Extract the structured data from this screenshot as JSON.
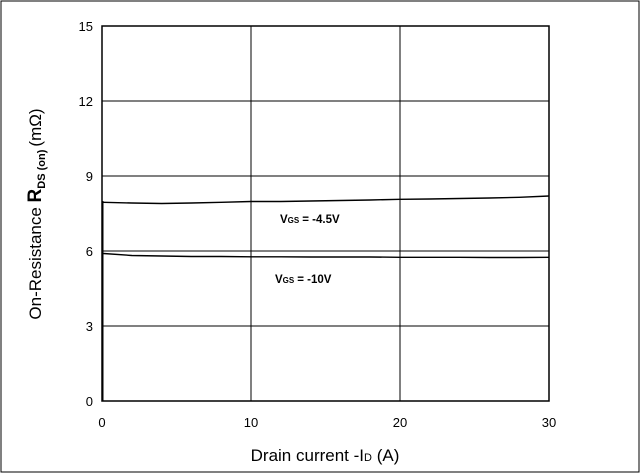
{
  "chart_data": {
    "type": "line",
    "xlabel_prefix": "Drain current -I",
    "xlabel_sub": "D",
    "xlabel_suffix": " (A)",
    "ylabel_prefix": "On-Resistance ",
    "ylabel_bold": "R",
    "ylabel_sub": "DS (on)",
    "ylabel_suffix": "(mΩ)",
    "xlim": [
      0,
      30
    ],
    "ylim": [
      0,
      15
    ],
    "xticks": [
      "0",
      "10",
      "20",
      "30"
    ],
    "yticks": [
      "0",
      "3",
      "6",
      "9",
      "12",
      "15"
    ],
    "grid": true,
    "series": [
      {
        "name": "VGS = -4.5V",
        "label_main": "V",
        "label_sub": "GS",
        "label_rest": "= -4.5V",
        "x": [
          0.1,
          2,
          4,
          6,
          8,
          10,
          12,
          14,
          16,
          18,
          20,
          22,
          24,
          26,
          28,
          30
        ],
        "y": [
          7.95,
          7.92,
          7.9,
          7.92,
          7.95,
          7.98,
          7.98,
          8.0,
          8.02,
          8.04,
          8.07,
          8.08,
          8.1,
          8.12,
          8.15,
          8.2
        ]
      },
      {
        "name": "VGS = -10V",
        "label_main": "V",
        "label_sub": "GS",
        "label_rest": "= -10V",
        "x": [
          0.1,
          2,
          4,
          6,
          8,
          10,
          12,
          14,
          16,
          18,
          20,
          22,
          24,
          26,
          28,
          30
        ],
        "y": [
          5.9,
          5.82,
          5.8,
          5.78,
          5.78,
          5.77,
          5.77,
          5.76,
          5.76,
          5.76,
          5.75,
          5.75,
          5.75,
          5.74,
          5.74,
          5.75
        ]
      }
    ]
  }
}
